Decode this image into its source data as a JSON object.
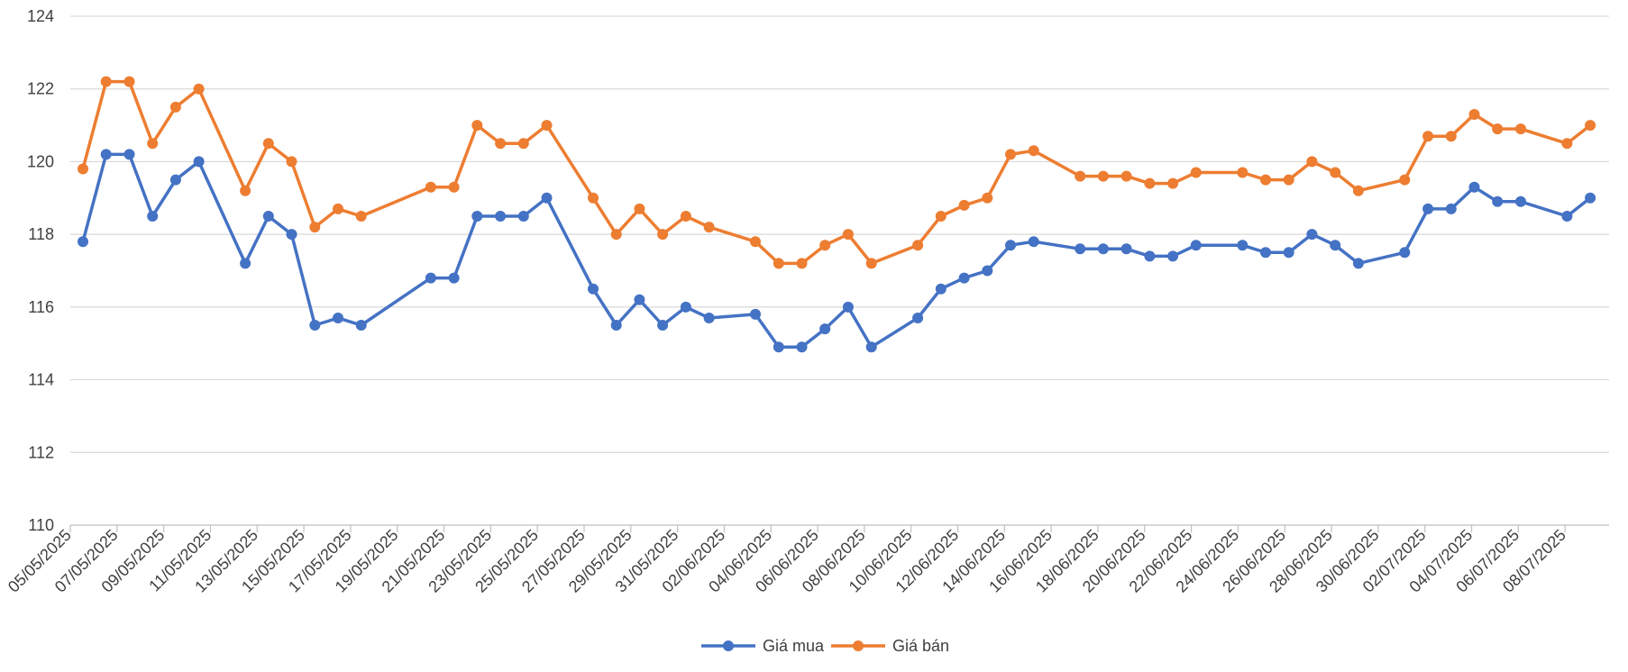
{
  "chart_data": {
    "type": "line",
    "title": "",
    "xlabel": "",
    "ylabel": "",
    "ylim": [
      110,
      124
    ],
    "y_ticks": [
      110,
      112,
      114,
      116,
      118,
      120,
      122,
      124
    ],
    "grid": true,
    "legend_position": "bottom",
    "x_start": "05/05/2025",
    "x_tick_labels": [
      "05/05/2025",
      "07/05/2025",
      "09/05/2025",
      "11/05/2025",
      "13/05/2025",
      "15/05/2025",
      "17/05/2025",
      "19/05/2025",
      "21/05/2025",
      "23/05/2025",
      "25/05/2025",
      "27/05/2025",
      "29/05/2025",
      "31/05/2025",
      "02/06/2025",
      "04/06/2025",
      "06/06/2025",
      "08/06/2025",
      "10/06/2025",
      "12/06/2025",
      "14/06/2025",
      "16/06/2025",
      "18/06/2025",
      "20/06/2025",
      "22/06/2025",
      "24/06/2025",
      "26/06/2025",
      "28/06/2025",
      "30/06/2025",
      "02/07/2025",
      "04/07/2025",
      "06/07/2025",
      "08/07/2025"
    ],
    "series": [
      {
        "name": "Giá mua",
        "color": "#4472C4",
        "points": [
          [
            0,
            117.8
          ],
          [
            1,
            120.2
          ],
          [
            2,
            120.2
          ],
          [
            3,
            118.5
          ],
          [
            4,
            119.5
          ],
          [
            5,
            120
          ],
          [
            7,
            117.2
          ],
          [
            8,
            118.5
          ],
          [
            9,
            118
          ],
          [
            10,
            115.5
          ],
          [
            11,
            115.7
          ],
          [
            12,
            115.5
          ],
          [
            15,
            116.8
          ],
          [
            16,
            116.8
          ],
          [
            17,
            118.5
          ],
          [
            18,
            118.5
          ],
          [
            19,
            118.5
          ],
          [
            20,
            119
          ],
          [
            22,
            116.5
          ],
          [
            23,
            115.5
          ],
          [
            24,
            116.2
          ],
          [
            25,
            115.5
          ],
          [
            26,
            116
          ],
          [
            27,
            115.7
          ],
          [
            29,
            115.8
          ],
          [
            30,
            114.9
          ],
          [
            31,
            114.9
          ],
          [
            32,
            115.4
          ],
          [
            33,
            116
          ],
          [
            34,
            114.9
          ],
          [
            36,
            115.7
          ],
          [
            37,
            116.5
          ],
          [
            38,
            116.8
          ],
          [
            39,
            117
          ],
          [
            40,
            117.7
          ],
          [
            41,
            117.8
          ],
          [
            43,
            117.6
          ],
          [
            44,
            117.6
          ],
          [
            45,
            117.6
          ],
          [
            46,
            117.4
          ],
          [
            47,
            117.4
          ],
          [
            48,
            117.7
          ],
          [
            50,
            117.7
          ],
          [
            51,
            117.5
          ],
          [
            52,
            117.5
          ],
          [
            53,
            118
          ],
          [
            54,
            117.7
          ],
          [
            55,
            117.2
          ],
          [
            57,
            117.5
          ],
          [
            58,
            118.7
          ],
          [
            59,
            118.7
          ],
          [
            60,
            119.3
          ],
          [
            61,
            118.9
          ],
          [
            62,
            118.9
          ],
          [
            64,
            118.5
          ],
          [
            65,
            119
          ]
        ]
      },
      {
        "name": "Giá bán",
        "color": "#ED7D31",
        "points": [
          [
            0,
            119.8
          ],
          [
            1,
            122.2
          ],
          [
            2,
            122.2
          ],
          [
            3,
            120.5
          ],
          [
            4,
            121.5
          ],
          [
            5,
            122
          ],
          [
            7,
            119.2
          ],
          [
            8,
            120.5
          ],
          [
            9,
            120
          ],
          [
            10,
            118.2
          ],
          [
            11,
            118.7
          ],
          [
            12,
            118.5
          ],
          [
            15,
            119.3
          ],
          [
            16,
            119.3
          ],
          [
            17,
            121
          ],
          [
            18,
            120.5
          ],
          [
            19,
            120.5
          ],
          [
            20,
            121
          ],
          [
            22,
            119
          ],
          [
            23,
            118
          ],
          [
            24,
            118.7
          ],
          [
            25,
            118
          ],
          [
            26,
            118.5
          ],
          [
            27,
            118.2
          ],
          [
            29,
            117.8
          ],
          [
            30,
            117.2
          ],
          [
            31,
            117.2
          ],
          [
            32,
            117.7
          ],
          [
            33,
            118
          ],
          [
            34,
            117.2
          ],
          [
            36,
            117.7
          ],
          [
            37,
            118.5
          ],
          [
            38,
            118.8
          ],
          [
            39,
            119
          ],
          [
            40,
            120.2
          ],
          [
            41,
            120.3
          ],
          [
            43,
            119.6
          ],
          [
            44,
            119.6
          ],
          [
            45,
            119.6
          ],
          [
            46,
            119.4
          ],
          [
            47,
            119.4
          ],
          [
            48,
            119.7
          ],
          [
            50,
            119.7
          ],
          [
            51,
            119.5
          ],
          [
            52,
            119.5
          ],
          [
            53,
            120
          ],
          [
            54,
            119.7
          ],
          [
            55,
            119.2
          ],
          [
            57,
            119.5
          ],
          [
            58,
            120.7
          ],
          [
            59,
            120.7
          ],
          [
            60,
            121.3
          ],
          [
            61,
            120.9
          ],
          [
            62,
            120.9
          ],
          [
            64,
            120.5
          ],
          [
            65,
            121
          ]
        ]
      }
    ]
  }
}
